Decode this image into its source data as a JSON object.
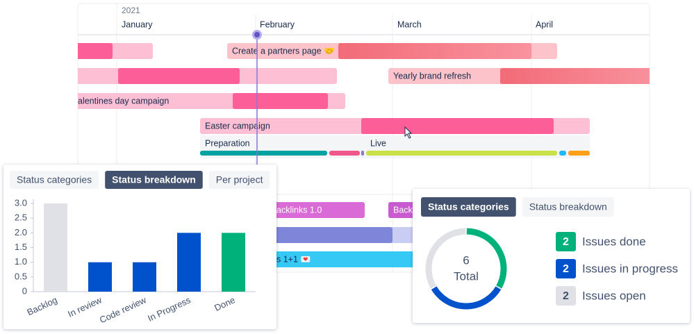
{
  "timeline": {
    "year": "2021",
    "months": [
      "January",
      "February",
      "March",
      "April"
    ],
    "bars": [
      "Create a partners page 🤝",
      "Yearly brand refresh",
      "alentines day campaign",
      "Easter campaign",
      "acklinks 1.0",
      "Back",
      "s 1+1 💌"
    ],
    "phases": [
      "Preparation",
      "Live"
    ]
  },
  "chart_data": [
    {
      "type": "bar",
      "tabs": [
        "Status categories",
        "Status breakdown",
        "Per project"
      ],
      "active_tab": 1,
      "categories": [
        "Backlog",
        "In review",
        "Code review",
        "In Progress",
        "Done"
      ],
      "values": [
        3,
        1,
        1,
        2,
        2
      ],
      "colors": [
        "#dfe1e6",
        "#0052cc",
        "#0052cc",
        "#0052cc",
        "#00b27a"
      ],
      "ylim": [
        0,
        3
      ],
      "yticks": [
        0,
        0.5,
        {
          "value": 1,
          "label": "1.0"
        },
        1.5,
        {
          "value": 2,
          "label": "2.0"
        },
        2.5,
        {
          "value": 3,
          "label": "3.0"
        }
      ]
    },
    {
      "type": "donut",
      "tabs": [
        "Status categories",
        "Status breakdown"
      ],
      "active_tab": 0,
      "total": 6,
      "total_label": "Total",
      "categories": [
        "Issues done",
        "Issues in progress",
        "Issues open"
      ],
      "values": [
        2,
        2,
        2
      ],
      "colors": [
        "#00b27a",
        "#0052cc",
        "#dfe1e6"
      ]
    }
  ]
}
